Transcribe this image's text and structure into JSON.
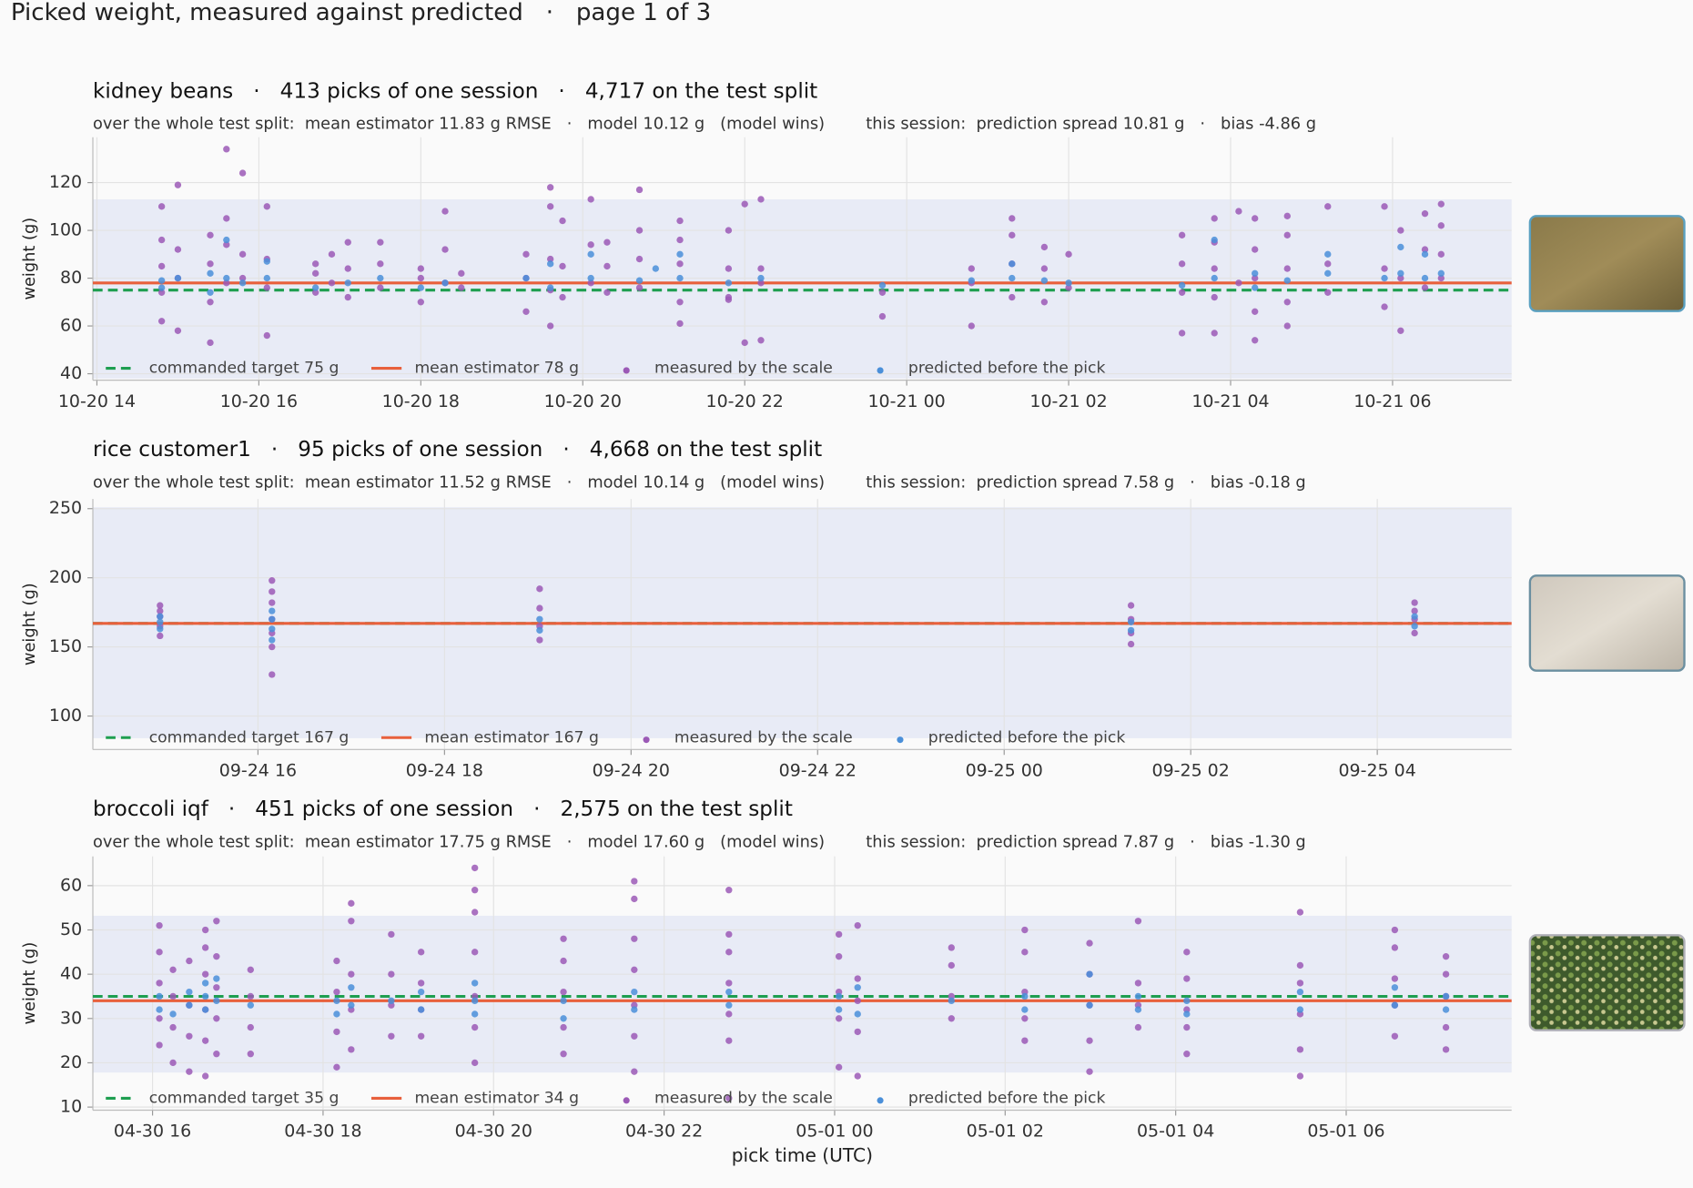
{
  "title": "Picked weight, measured against predicted   ·   page 1 of 3",
  "chart_data": [
    {
      "type": "scatter",
      "title": "kidney beans   ·   413 picks of one session   ·   4,717 on the test split",
      "subtitle": "over the whole test split:  mean estimator 11.83 g RMSE   ·   model 10.12 g   (model wins)        this session:  prediction spread 10.81 g   ·   bias -4.86 g",
      "ylabel": "weight (g)",
      "xlim": [
        13.95,
        31.47
      ],
      "ylim": [
        37.3,
        139
      ],
      "xticks": [
        {
          "value": 14,
          "label": "10-20 14"
        },
        {
          "value": 16,
          "label": "10-20 16"
        },
        {
          "value": 18,
          "label": "10-20 18"
        },
        {
          "value": 20,
          "label": "10-20 20"
        },
        {
          "value": 22,
          "label": "10-20 22"
        },
        {
          "value": 24,
          "label": "10-21 00"
        },
        {
          "value": 26,
          "label": "10-21 02"
        },
        {
          "value": 28,
          "label": "10-21 04"
        },
        {
          "value": 30,
          "label": "10-21 06"
        }
      ],
      "yticks": [
        40,
        60,
        80,
        100,
        120
      ],
      "grid": true,
      "band": [
        38,
        113
      ],
      "band_color": "#e8ebf6",
      "lines": [
        {
          "name": "commanded target 75 g",
          "value": 75,
          "color": "#1e9e50",
          "style": "dashed"
        },
        {
          "name": "mean estimator 78 g",
          "value": 78,
          "color": "#e8603c",
          "style": "solid"
        }
      ],
      "series": [
        {
          "name": "measured by the scale",
          "color": "#9b59b6",
          "x": [
            14.8,
            14.8,
            14.8,
            14.8,
            14.8,
            15.0,
            15.0,
            15.0,
            15.0,
            15.4,
            15.4,
            15.4,
            15.4,
            15.6,
            15.6,
            15.6,
            15.6,
            15.8,
            15.8,
            15.8,
            16.1,
            16.1,
            16.1,
            16.1,
            16.7,
            16.7,
            16.7,
            16.9,
            16.9,
            17.1,
            17.1,
            17.1,
            17.5,
            17.5,
            17.5,
            18.0,
            18.0,
            18.0,
            18.3,
            18.3,
            18.3,
            18.5,
            18.5,
            19.3,
            19.3,
            19.3,
            19.6,
            19.6,
            19.6,
            19.6,
            19.6,
            19.75,
            19.75,
            19.75,
            20.1,
            20.1,
            20.1,
            20.3,
            20.3,
            20.3,
            20.7,
            20.7,
            20.7,
            20.7,
            21.2,
            21.2,
            21.2,
            21.2,
            21.2,
            21.8,
            21.8,
            21.8,
            21.8,
            22.0,
            22.0,
            22.2,
            22.2,
            22.2,
            22.2,
            23.7,
            23.7,
            24.8,
            24.8,
            24.8,
            25.3,
            25.3,
            25.3,
            25.3,
            25.7,
            25.7,
            25.7,
            26.0,
            26.0,
            27.4,
            27.4,
            27.4,
            27.4,
            27.8,
            27.8,
            27.8,
            27.8,
            27.8,
            28.1,
            28.1,
            28.3,
            28.3,
            28.3,
            28.3,
            28.3,
            28.7,
            28.7,
            28.7,
            28.7,
            28.7,
            29.2,
            29.2,
            29.2,
            29.9,
            29.9,
            29.9,
            30.1,
            30.1,
            30.1,
            30.4,
            30.4,
            30.4,
            30.6,
            30.6,
            30.6,
            30.6
          ],
          "values": [
            74,
            85,
            96,
            62,
            110,
            80,
            92,
            58,
            119,
            70,
            86,
            98,
            53,
            78,
            94,
            134,
            105,
            80,
            90,
            124,
            76,
            88,
            110,
            56,
            74,
            82,
            86,
            78,
            90,
            72,
            84,
            95,
            76,
            86,
            95,
            70,
            80,
            84,
            78,
            92,
            108,
            76,
            82,
            66,
            80,
            90,
            75,
            88,
            110,
            118,
            60,
            72,
            85,
            104,
            78,
            94,
            113,
            74,
            85,
            95,
            76,
            88,
            100,
            117,
            70,
            86,
            96,
            104,
            61,
            72,
            84,
            100,
            71,
            53,
            111,
            78,
            84,
            54,
            113,
            64,
            74,
            60,
            78,
            84,
            72,
            86,
            105,
            98,
            70,
            84,
            93,
            76,
            90,
            57,
            74,
            86,
            98,
            72,
            84,
            95,
            105,
            57,
            108,
            78,
            54,
            66,
            80,
            92,
            105,
            60,
            70,
            84,
            98,
            106,
            74,
            86,
            110,
            68,
            84,
            110,
            58,
            80,
            100,
            76,
            92,
            107,
            80,
            90,
            111,
            102
          ]
        },
        {
          "name": "predicted before the pick",
          "color": "#4a8fd9",
          "x": [
            14.8,
            14.8,
            15.0,
            15.4,
            15.4,
            15.6,
            15.6,
            15.8,
            16.1,
            16.1,
            16.7,
            17.1,
            17.5,
            18.0,
            18.3,
            19.3,
            19.6,
            19.6,
            20.1,
            20.1,
            20.7,
            20.9,
            21.2,
            21.2,
            21.8,
            22.2,
            23.7,
            24.8,
            25.3,
            25.3,
            25.7,
            26.0,
            27.4,
            27.8,
            27.8,
            28.3,
            28.3,
            28.7,
            29.2,
            29.2,
            29.9,
            30.1,
            30.1,
            30.4,
            30.4,
            30.6
          ],
          "values": [
            76,
            79,
            80,
            74,
            82,
            80,
            96,
            78,
            80,
            87,
            76,
            78,
            80,
            76,
            78,
            80,
            76,
            86,
            80,
            90,
            79,
            84,
            80,
            90,
            78,
            80,
            77,
            79,
            80,
            86,
            79,
            78,
            77,
            80,
            96,
            76,
            82,
            79,
            82,
            90,
            80,
            82,
            93,
            80,
            90,
            82
          ]
        }
      ]
    },
    {
      "type": "scatter",
      "title": "rice customer1   ·   95 picks of one session   ·   4,668 on the test split",
      "subtitle": "over the whole test split:  mean estimator 11.52 g RMSE   ·   model 10.14 g   (model wins)        this session:  prediction spread 7.58 g   ·   bias -0.18 g",
      "ylabel": "weight (g)",
      "xlim": [
        14.23,
        29.44
      ],
      "ylim": [
        75.8,
        257
      ],
      "xticks": [
        {
          "value": 16,
          "label": "09-24 16"
        },
        {
          "value": 18,
          "label": "09-24 18"
        },
        {
          "value": 20,
          "label": "09-24 20"
        },
        {
          "value": 22,
          "label": "09-24 22"
        },
        {
          "value": 24,
          "label": "09-25 00"
        },
        {
          "value": 26,
          "label": "09-25 02"
        },
        {
          "value": 28,
          "label": "09-25 04"
        }
      ],
      "yticks": [
        100,
        150,
        200,
        250
      ],
      "grid": true,
      "band": [
        84,
        251
      ],
      "band_color": "#e8ebf6",
      "lines": [
        {
          "name": "commanded target 167 g",
          "value": 167,
          "color": "#1e9e50",
          "style": "dashed"
        },
        {
          "name": "mean estimator 167 g",
          "value": 167,
          "color": "#e8603c",
          "style": "solid"
        }
      ],
      "series": [
        {
          "name": "measured by the scale",
          "color": "#9b59b6",
          "x": [
            14.95,
            14.95,
            14.95,
            14.95,
            14.95,
            16.15,
            16.15,
            16.15,
            16.15,
            16.15,
            16.15,
            16.15,
            19.02,
            19.02,
            19.02,
            19.02,
            25.36,
            25.36,
            25.36,
            25.36,
            28.4,
            28.4,
            28.4,
            28.4
          ],
          "values": [
            158,
            165,
            172,
            180,
            176,
            130,
            150,
            160,
            170,
            182,
            190,
            198,
            155,
            165,
            178,
            192,
            152,
            160,
            170,
            180,
            160,
            170,
            176,
            182
          ]
        },
        {
          "name": "predicted before the pick",
          "color": "#4a8fd9",
          "x": [
            14.95,
            14.95,
            14.95,
            16.15,
            16.15,
            16.15,
            16.15,
            19.02,
            19.02,
            25.36,
            25.36,
            28.4,
            28.4
          ],
          "values": [
            163,
            168,
            172,
            155,
            163,
            170,
            176,
            162,
            170,
            162,
            168,
            165,
            172
          ]
        }
      ]
    },
    {
      "type": "scatter",
      "title": "broccoli iqf   ·   451 picks of one session   ·   2,575 on the test split",
      "subtitle": "over the whole test split:  mean estimator 17.75 g RMSE   ·   model 17.60 g   (model wins)        this session:  prediction spread 7.87 g   ·   bias -1.30 g",
      "ylabel": "weight (g)",
      "xlabel": "pick time (UTC)",
      "xlim": [
        15.3,
        31.94
      ],
      "ylim": [
        9.3,
        66.6
      ],
      "xticks": [
        {
          "value": 16,
          "label": "04-30 16"
        },
        {
          "value": 18,
          "label": "04-30 18"
        },
        {
          "value": 20,
          "label": "04-30 20"
        },
        {
          "value": 22,
          "label": "04-30 22"
        },
        {
          "value": 24,
          "label": "05-01 00"
        },
        {
          "value": 26,
          "label": "05-01 02"
        },
        {
          "value": 28,
          "label": "05-01 04"
        },
        {
          "value": 30,
          "label": "05-01 06"
        }
      ],
      "yticks": [
        10,
        20,
        30,
        40,
        50,
        60
      ],
      "grid": true,
      "band": [
        17.8,
        53.2
      ],
      "band_color": "#e8ebf6",
      "lines": [
        {
          "name": "commanded target 35 g",
          "value": 35,
          "color": "#1e9e50",
          "style": "dashed"
        },
        {
          "name": "mean estimator 34 g",
          "value": 34,
          "color": "#e8603c",
          "style": "solid"
        }
      ],
      "series": [
        {
          "name": "measured by the scale",
          "color": "#9b59b6",
          "x": [
            16.08,
            16.08,
            16.08,
            16.08,
            16.08,
            16.24,
            16.24,
            16.24,
            16.24,
            16.43,
            16.43,
            16.43,
            16.43,
            16.62,
            16.62,
            16.62,
            16.62,
            16.62,
            16.62,
            16.75,
            16.75,
            16.75,
            16.75,
            16.75,
            17.15,
            17.15,
            17.15,
            17.15,
            18.16,
            18.16,
            18.16,
            18.16,
            18.33,
            18.33,
            18.33,
            18.33,
            18.33,
            18.8,
            18.8,
            18.8,
            18.8,
            19.15,
            19.15,
            19.15,
            19.15,
            19.78,
            19.78,
            19.78,
            19.78,
            19.78,
            19.78,
            19.78,
            20.82,
            20.82,
            20.82,
            20.82,
            20.82,
            21.65,
            21.65,
            21.65,
            21.65,
            21.65,
            21.65,
            21.65,
            22.76,
            22.76,
            22.76,
            22.76,
            22.76,
            22.76,
            22.76,
            24.05,
            24.05,
            24.05,
            24.05,
            24.05,
            24.27,
            24.27,
            24.27,
            24.27,
            24.27,
            25.37,
            25.37,
            25.37,
            25.37,
            26.23,
            26.23,
            26.23,
            26.23,
            26.23,
            26.99,
            26.99,
            26.99,
            26.99,
            26.99,
            27.56,
            27.56,
            27.56,
            27.56,
            28.13,
            28.13,
            28.13,
            28.13,
            28.13,
            29.46,
            29.46,
            29.46,
            29.46,
            29.46,
            29.46,
            30.57,
            30.57,
            30.57,
            30.57,
            30.57,
            31.17,
            31.17,
            31.17,
            31.17,
            31.17
          ],
          "values": [
            24,
            30,
            38,
            45,
            51,
            20,
            28,
            35,
            41,
            18,
            26,
            33,
            43,
            17,
            25,
            32,
            40,
            46,
            50,
            22,
            30,
            37,
            44,
            52,
            22,
            28,
            35,
            41,
            19,
            27,
            36,
            43,
            23,
            32,
            40,
            52,
            56,
            26,
            33,
            40,
            49,
            26,
            32,
            38,
            45,
            20,
            28,
            35,
            45,
            54,
            59,
            64,
            22,
            28,
            36,
            43,
            48,
            18,
            26,
            33,
            41,
            48,
            57,
            61,
            12,
            25,
            31,
            38,
            45,
            49,
            59,
            19,
            30,
            36,
            44,
            49,
            17,
            27,
            34,
            39,
            51,
            30,
            35,
            42,
            46,
            25,
            30,
            36,
            45,
            50,
            18,
            25,
            33,
            40,
            47,
            28,
            33,
            38,
            52,
            22,
            28,
            32,
            39,
            45,
            17,
            23,
            31,
            38,
            42,
            54,
            26,
            33,
            39,
            46,
            50,
            23,
            28,
            35,
            40,
            44
          ]
        },
        {
          "name": "predicted before the pick",
          "color": "#4a8fd9",
          "x": [
            16.08,
            16.08,
            16.24,
            16.43,
            16.43,
            16.62,
            16.62,
            16.62,
            16.75,
            16.75,
            17.15,
            18.16,
            18.16,
            18.33,
            18.33,
            18.8,
            19.15,
            19.15,
            19.78,
            19.78,
            19.78,
            20.82,
            20.82,
            21.65,
            21.65,
            22.76,
            22.76,
            24.05,
            24.05,
            24.27,
            24.27,
            25.37,
            26.23,
            26.23,
            26.99,
            26.99,
            27.56,
            27.56,
            28.13,
            28.13,
            29.46,
            29.46,
            30.57,
            30.57,
            31.17,
            31.17
          ],
          "values": [
            32,
            35,
            31,
            33,
            36,
            32,
            35,
            38,
            34,
            39,
            33,
            31,
            34,
            33,
            37,
            34,
            32,
            36,
            31,
            34,
            38,
            30,
            34,
            32,
            36,
            33,
            36,
            32,
            35,
            31,
            37,
            34,
            32,
            35,
            33,
            40,
            32,
            35,
            31,
            34,
            32,
            36,
            33,
            37,
            32,
            35
          ]
        }
      ]
    }
  ]
}
